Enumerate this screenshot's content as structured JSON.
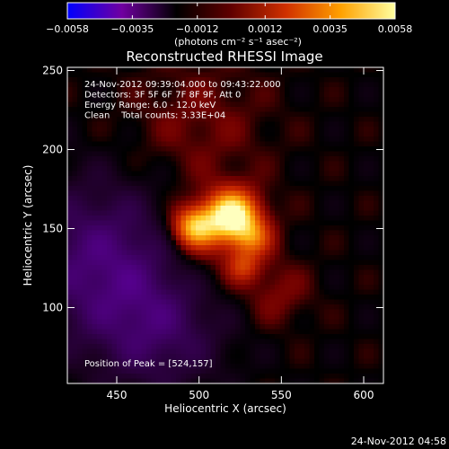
{
  "chart_data": {
    "type": "heatmap",
    "title": "Reconstructed RHESSI Image",
    "xlabel": "Heliocentric X (arcsec)",
    "ylabel": "Heliocentric Y (arcsec)",
    "xlim": [
      420,
      612
    ],
    "ylim": [
      52,
      252
    ],
    "x_ticks": [
      450,
      500,
      550,
      600
    ],
    "y_ticks": [
      100,
      150,
      200,
      250
    ],
    "grid": false,
    "colorbar": {
      "unit": "(photons cm⁻² s⁻¹ asec⁻²)",
      "ticks": [
        -0.0058,
        -0.0035,
        -0.0012,
        0.0012,
        0.0035,
        0.0058
      ],
      "tick_labels": [
        "−0.0058",
        "−0.0035",
        "−0.0012",
        "0.0012",
        "0.0035",
        "0.0058"
      ],
      "range": [
        -0.0058,
        0.0058
      ],
      "colors": [
        "#0000ff",
        "#7000a0",
        "#000000",
        "#600000",
        "#d03000",
        "#ffa000",
        "#ffffa0"
      ]
    },
    "annotations": [
      "24-Nov-2012 09:39:04.000 to 09:43:22.000",
      "Detectors: 3F 5F 6F 7F 8F 9F, Att 0",
      "Energy Range: 6.0 - 12.0 keV",
      "Clean    Total counts: 3.33E+04"
    ],
    "peak_label": "Position of Peak = [524,157]",
    "peak": [
      524,
      157
    ],
    "sources": [
      {
        "x": 520,
        "y": 158,
        "sigma": 11,
        "amp": 0.0058
      },
      {
        "x": 497,
        "y": 151,
        "sigma": 9,
        "amp": 0.0042
      },
      {
        "x": 533,
        "y": 144,
        "sigma": 8,
        "amp": 0.0022
      },
      {
        "x": 527,
        "y": 126,
        "sigma": 7,
        "amp": 0.0018
      },
      {
        "x": 510,
        "y": 140,
        "sigma": 22,
        "amp": 0.0011
      },
      {
        "x": 548,
        "y": 108,
        "sigma": 14,
        "amp": 0.0009
      },
      {
        "x": 500,
        "y": 215,
        "sigma": 30,
        "amp": 0.0008
      },
      {
        "x": 440,
        "y": 130,
        "sigma": 35,
        "amp": -0.0022
      },
      {
        "x": 475,
        "y": 85,
        "sigma": 28,
        "amp": -0.0016
      }
    ]
  },
  "footer": {
    "timestamp": "24-Nov-2012 04:58"
  }
}
